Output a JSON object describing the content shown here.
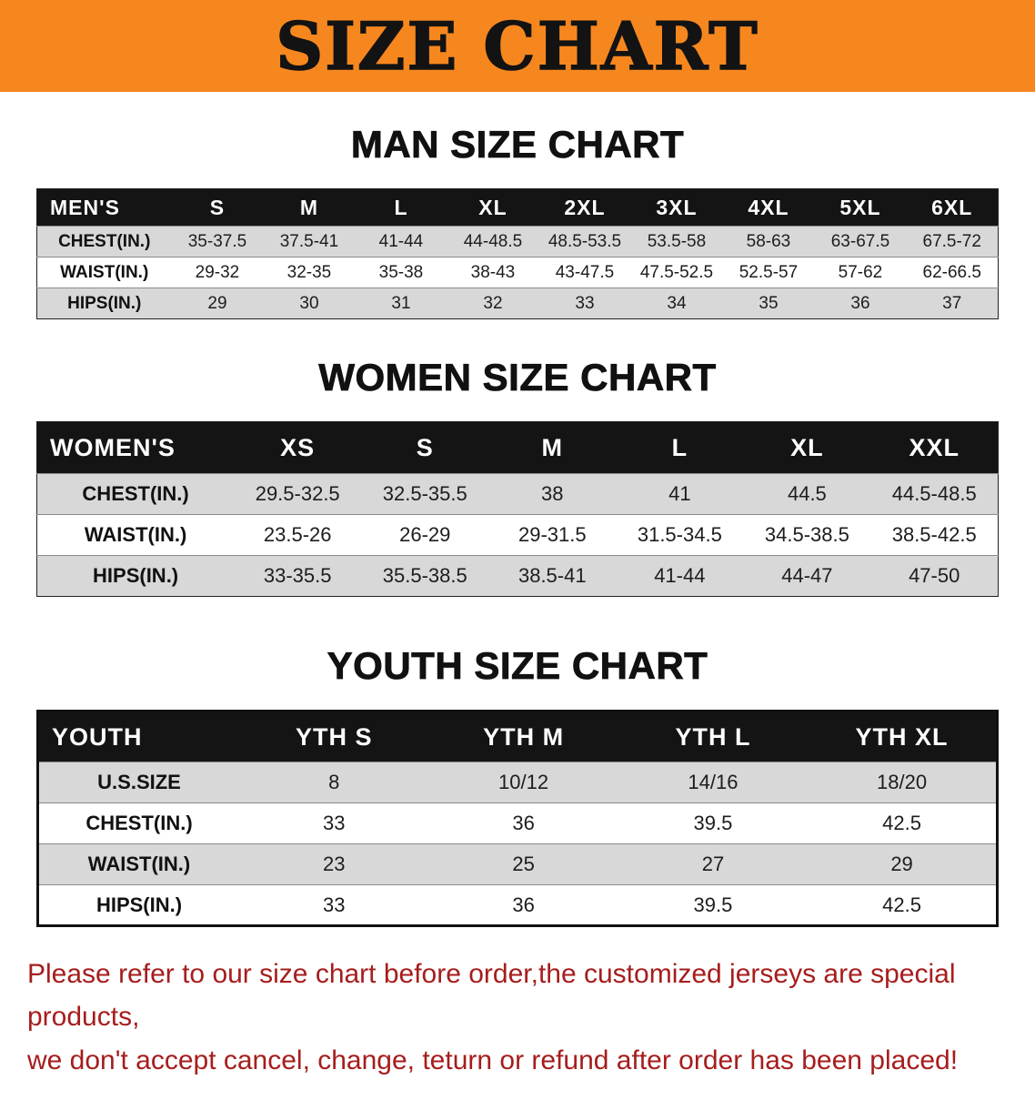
{
  "banner": {
    "title": "SIZE CHART"
  },
  "colors": {
    "banner_bg": "#f6871f",
    "banner_text": "#131313",
    "table_header_bg": "#141414",
    "table_header_text": "#ffffff",
    "row_alt_bg": "#d8d8d8",
    "disclaimer_text": "#a61d1d"
  },
  "sections": [
    {
      "id": "men-size-chart",
      "heading": "MAN SIZE CHART",
      "table": {
        "header": [
          "MEN'S",
          "S",
          "M",
          "L",
          "XL",
          "2XL",
          "3XL",
          "4XL",
          "5XL",
          "6XL"
        ],
        "rows": [
          [
            "CHEST(IN.)",
            "35-37.5",
            "37.5-41",
            "41-44",
            "44-48.5",
            "48.5-53.5",
            "53.5-58",
            "58-63",
            "63-67.5",
            "67.5-72"
          ],
          [
            "WAIST(IN.)",
            "29-32",
            "32-35",
            "35-38",
            "38-43",
            "43-47.5",
            "47.5-52.5",
            "52.5-57",
            "57-62",
            "62-66.5"
          ],
          [
            "HIPS(IN.)",
            "29",
            "30",
            "31",
            "32",
            "33",
            "34",
            "35",
            "36",
            "37"
          ]
        ]
      }
    },
    {
      "id": "women-size-chart",
      "heading": "WOMEN SIZE CHART",
      "table": {
        "header": [
          "WOMEN'S",
          "XS",
          "S",
          "M",
          "L",
          "XL",
          "XXL"
        ],
        "rows": [
          [
            "CHEST(IN.)",
            "29.5-32.5",
            "32.5-35.5",
            "38",
            "41",
            "44.5",
            "44.5-48.5"
          ],
          [
            "WAIST(IN.)",
            "23.5-26",
            "26-29",
            "29-31.5",
            "31.5-34.5",
            "34.5-38.5",
            "38.5-42.5"
          ],
          [
            "HIPS(IN.)",
            "33-35.5",
            "35.5-38.5",
            "38.5-41",
            "41-44",
            "44-47",
            "47-50"
          ]
        ]
      }
    },
    {
      "id": "youth-size-chart",
      "heading": "YOUTH SIZE CHART",
      "table": {
        "header": [
          "YOUTH",
          "YTH S",
          "YTH M",
          "YTH L",
          "YTH XL"
        ],
        "rows": [
          [
            "U.S.SIZE",
            "8",
            "10/12",
            "14/16",
            "18/20"
          ],
          [
            "CHEST(IN.)",
            "33",
            "36",
            "39.5",
            "42.5"
          ],
          [
            "WAIST(IN.)",
            "23",
            "25",
            "27",
            "29"
          ],
          [
            "HIPS(IN.)",
            "33",
            "36",
            "39.5",
            "42.5"
          ]
        ]
      }
    }
  ],
  "disclaimer": {
    "line1": "Please refer to our size chart before order,the customized jerseys are special products,",
    "line2": "we don't accept cancel, change, teturn or refund after order has been placed!"
  }
}
